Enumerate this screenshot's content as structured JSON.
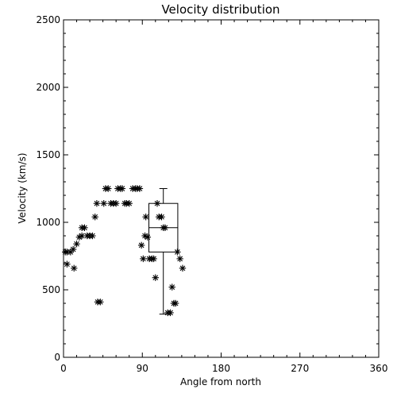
{
  "chart_data": {
    "type": "scatter",
    "title": "Velocity distribution",
    "xlabel": "Angle from north",
    "ylabel": "Velocity (km/s)",
    "xlim": [
      0,
      360
    ],
    "ylim": [
      0,
      2500
    ],
    "xticks": [
      0,
      90,
      180,
      270,
      360
    ],
    "yticks": [
      0,
      500,
      1000,
      1500,
      2000,
      2500
    ],
    "marker": "asterisk",
    "grid": false,
    "series": [
      {
        "points": [
          [
            2,
            780
          ],
          [
            4,
            780
          ],
          [
            4,
            690
          ],
          [
            8,
            780
          ],
          [
            11,
            800
          ],
          [
            12,
            660
          ],
          [
            15,
            840
          ],
          [
            18,
            890
          ],
          [
            21,
            900
          ],
          [
            21,
            960
          ],
          [
            24,
            960
          ],
          [
            27,
            900
          ],
          [
            30,
            900
          ],
          [
            33,
            900
          ],
          [
            36,
            1040
          ],
          [
            38,
            1140
          ],
          [
            39,
            410
          ],
          [
            42,
            410
          ],
          [
            46,
            1140
          ],
          [
            48,
            1250
          ],
          [
            51,
            1250
          ],
          [
            54,
            1140
          ],
          [
            57,
            1140
          ],
          [
            60,
            1140
          ],
          [
            62,
            1250
          ],
          [
            65,
            1250
          ],
          [
            67,
            1250
          ],
          [
            70,
            1140
          ],
          [
            72,
            1140
          ],
          [
            75,
            1140
          ],
          [
            79,
            1250
          ],
          [
            82,
            1250
          ],
          [
            84,
            1250
          ],
          [
            87,
            1250
          ],
          [
            89,
            830
          ],
          [
            91,
            730
          ],
          [
            93,
            900
          ],
          [
            94,
            1040
          ],
          [
            96,
            890
          ],
          [
            98,
            730
          ],
          [
            101,
            730
          ],
          [
            103,
            730
          ],
          [
            105,
            590
          ],
          [
            107,
            1140
          ],
          [
            109,
            1040
          ],
          [
            112,
            1040
          ],
          [
            114,
            960
          ],
          [
            116,
            960
          ],
          [
            119,
            330
          ],
          [
            122,
            330
          ],
          [
            124,
            520
          ],
          [
            126,
            400
          ],
          [
            128,
            400
          ],
          [
            130,
            780
          ],
          [
            133,
            730
          ],
          [
            136,
            660
          ]
        ]
      }
    ],
    "boxplot": {
      "x": 114,
      "width": 33,
      "min": 320,
      "q1": 780,
      "median": 960,
      "q3": 1140,
      "max": 1250
    }
  }
}
